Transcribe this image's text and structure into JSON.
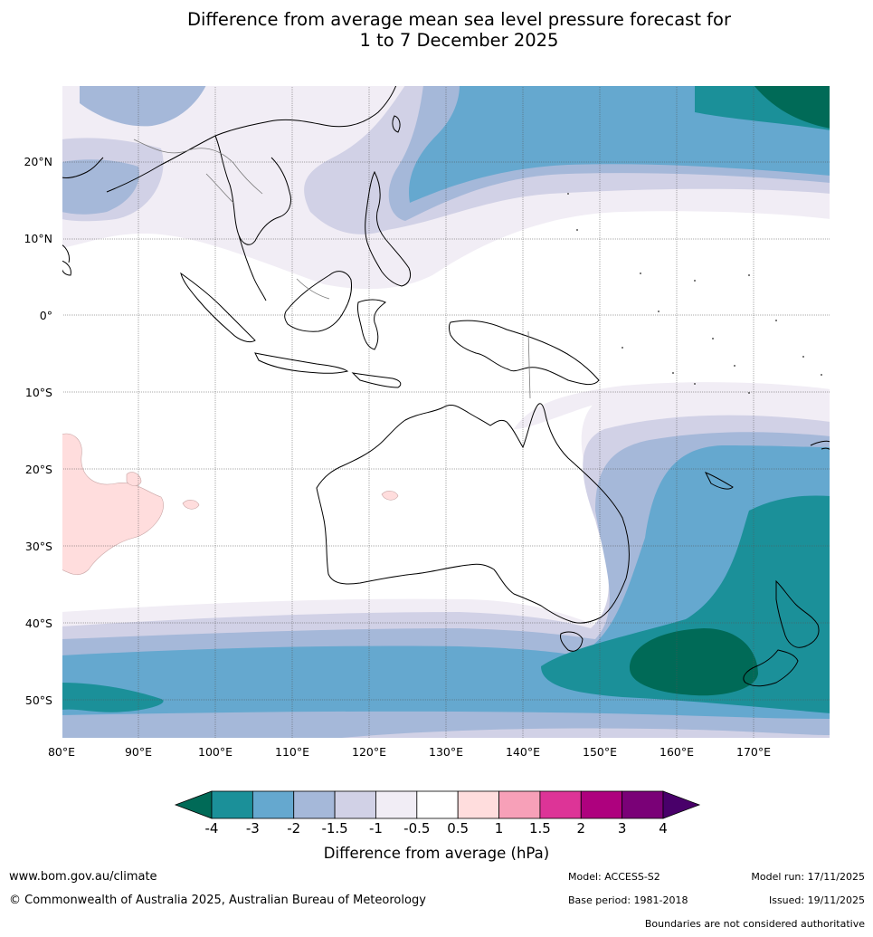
{
  "title": {
    "line1": "Difference from average mean sea level pressure forecast for",
    "line2": "1 to 7 December 2025"
  },
  "map": {
    "lat_labels": [
      "20°N",
      "10°N",
      "0°",
      "10°S",
      "20°S",
      "30°S",
      "40°S",
      "50°S"
    ],
    "lon_labels": [
      "80°E",
      "90°E",
      "100°E",
      "110°E",
      "120°E",
      "130°E",
      "140°E",
      "150°E",
      "160°E",
      "170°E"
    ],
    "lon_range": [
      80,
      180
    ],
    "lat_range": [
      -55,
      30
    ],
    "gridlines": true,
    "regions": [
      {
        "category": "-4",
        "place": "Tasman Sea south of New Zealand"
      },
      {
        "category": "-4",
        "place": "north-west Pacific"
      },
      {
        "category": "-1.5",
        "place": "south-west Indian Ocean"
      }
    ]
  },
  "legend": {
    "ticks": [
      "-4",
      "-3",
      "-2",
      "-1.5",
      "-1",
      "-0.5",
      "0.5",
      "1",
      "1.5",
      "2",
      "3",
      "4"
    ],
    "colors": [
      "#006a57",
      "#1b9099",
      "#65a8cf",
      "#a5b8d9",
      "#d1d1e6",
      "#f1edf5",
      "#ffffff",
      "#ffdddd",
      "#f7a0b8",
      "#dd3497",
      "#ae017e",
      "#7a0177",
      "#49006a"
    ],
    "title": "Difference from average (hPa)"
  },
  "footer": {
    "website": "www.bom.gov.au/climate",
    "copyright": "© Commonwealth of Australia 2025, Australian Bureau of Meteorology",
    "model": "Model: ACCESS-S2",
    "model_run": "Model run: 17/11/2025",
    "base_period": "Base period: 1981-2018",
    "issued": "Issued: 19/11/2025",
    "disclaimer": "Boundaries are not considered authoritative"
  }
}
